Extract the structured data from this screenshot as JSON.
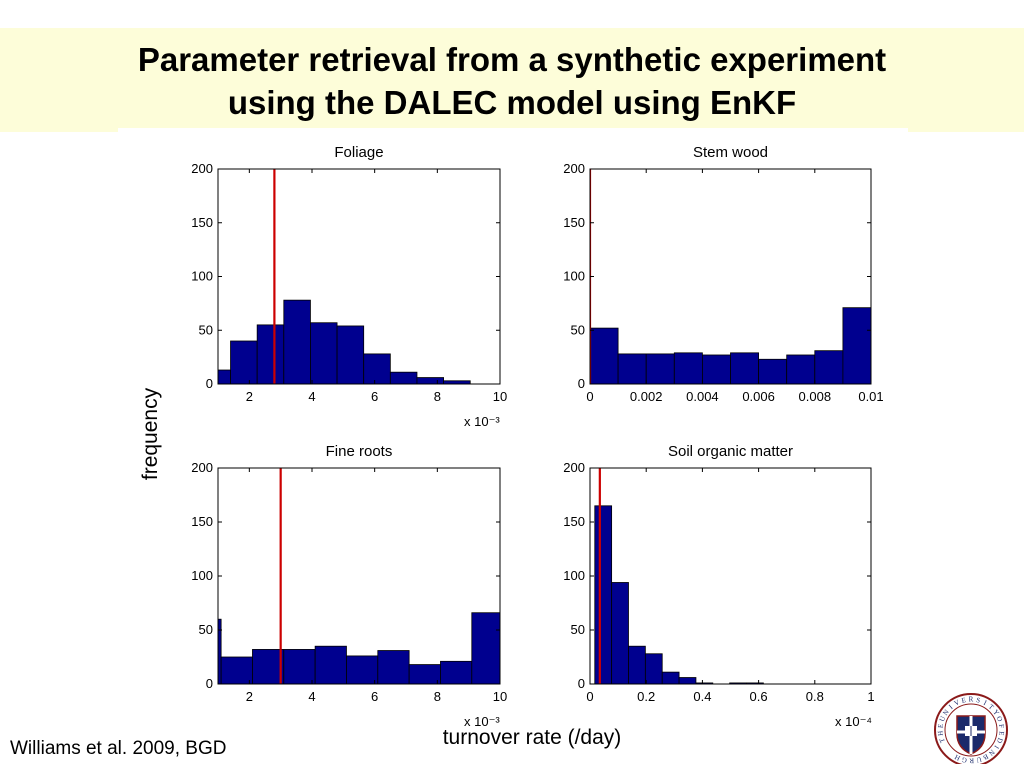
{
  "title_line1": "Parameter retrieval from a synthetic experiment",
  "title_line2": "using the DALEC model using EnKF",
  "ylabel": "frequency",
  "xlabel": "turnover rate (/day)",
  "citation": "Williams et al. 2009, BGD",
  "logo_text": "THE UNIVERSITY OF EDINBURGH",
  "colors": {
    "bar": "#00008f",
    "marker": "#cc0000",
    "title_bg": "#fdfdd9"
  },
  "chart_data": [
    {
      "type": "bar",
      "title": "Foliage",
      "x_multiplier": "x 10⁻³",
      "xlim": [
        1,
        10
      ],
      "ylim": [
        0,
        200
      ],
      "xticks": [
        2,
        4,
        6,
        8,
        10
      ],
      "xtick_labels": [
        "2",
        "4",
        "6",
        "8",
        "10"
      ],
      "yticks": [
        0,
        50,
        100,
        150,
        200
      ],
      "ytick_labels": [
        "0",
        "50",
        "100",
        "150",
        "200"
      ],
      "bin_edges": [
        0.55,
        1.4,
        2.25,
        3.1,
        3.95,
        4.8,
        5.65,
        6.5,
        7.35,
        8.2,
        9.05
      ],
      "values": [
        13,
        40,
        55,
        78,
        57,
        54,
        28,
        11,
        6,
        3
      ],
      "true_value": 2.8
    },
    {
      "type": "bar",
      "title": "Stem wood",
      "x_multiplier": "",
      "xlim": [
        0,
        0.01
      ],
      "ylim": [
        0,
        200
      ],
      "xticks": [
        0,
        0.002,
        0.004,
        0.006,
        0.008,
        0.01
      ],
      "xtick_labels": [
        "0",
        "0.002",
        "0.004",
        "0.006",
        "0.008",
        "0.01"
      ],
      "yticks": [
        0,
        50,
        100,
        150,
        200
      ],
      "ytick_labels": [
        "0",
        "50",
        "100",
        "150",
        "200"
      ],
      "bin_edges": [
        0,
        0.001,
        0.002,
        0.003,
        0.004,
        0.005,
        0.006,
        0.007,
        0.008,
        0.009,
        0.01
      ],
      "values": [
        52,
        28,
        28,
        29,
        27,
        29,
        23,
        27,
        31,
        71
      ],
      "true_value": 0
    },
    {
      "type": "bar",
      "title": "Fine roots",
      "x_multiplier": "x 10⁻³",
      "xlim": [
        1,
        10
      ],
      "ylim": [
        0,
        200
      ],
      "xticks": [
        2,
        4,
        6,
        8,
        10
      ],
      "xtick_labels": [
        "2",
        "4",
        "6",
        "8",
        "10"
      ],
      "yticks": [
        0,
        50,
        100,
        150,
        200
      ],
      "ytick_labels": [
        "0",
        "50",
        "100",
        "150",
        "200"
      ],
      "bin_edges": [
        0.1,
        1.1,
        2.1,
        3.1,
        4.1,
        5.1,
        6.1,
        7.1,
        8.1,
        9.1,
        10.1
      ],
      "values": [
        60,
        25,
        32,
        32,
        35,
        26,
        31,
        18,
        21,
        66
      ],
      "true_value": 3.0
    },
    {
      "type": "bar",
      "title": "Soil organic matter",
      "x_multiplier": "x 10⁻⁴",
      "xlim": [
        0,
        1
      ],
      "ylim": [
        0,
        200
      ],
      "xticks": [
        0,
        0.2,
        0.4,
        0.6,
        0.8,
        1
      ],
      "xtick_labels": [
        "0",
        "0.2",
        "0.4",
        "0.6",
        "0.8",
        "1"
      ],
      "yticks": [
        0,
        50,
        100,
        150,
        200
      ],
      "ytick_labels": [
        "0",
        "50",
        "100",
        "150",
        "200"
      ],
      "bin_edges": [
        0.017,
        0.077,
        0.137,
        0.197,
        0.257,
        0.317,
        0.377,
        0.437,
        0.497,
        0.557,
        0.617
      ],
      "values": [
        165,
        94,
        35,
        28,
        11,
        6,
        1,
        0,
        1,
        1
      ],
      "true_value": 0.035
    }
  ]
}
